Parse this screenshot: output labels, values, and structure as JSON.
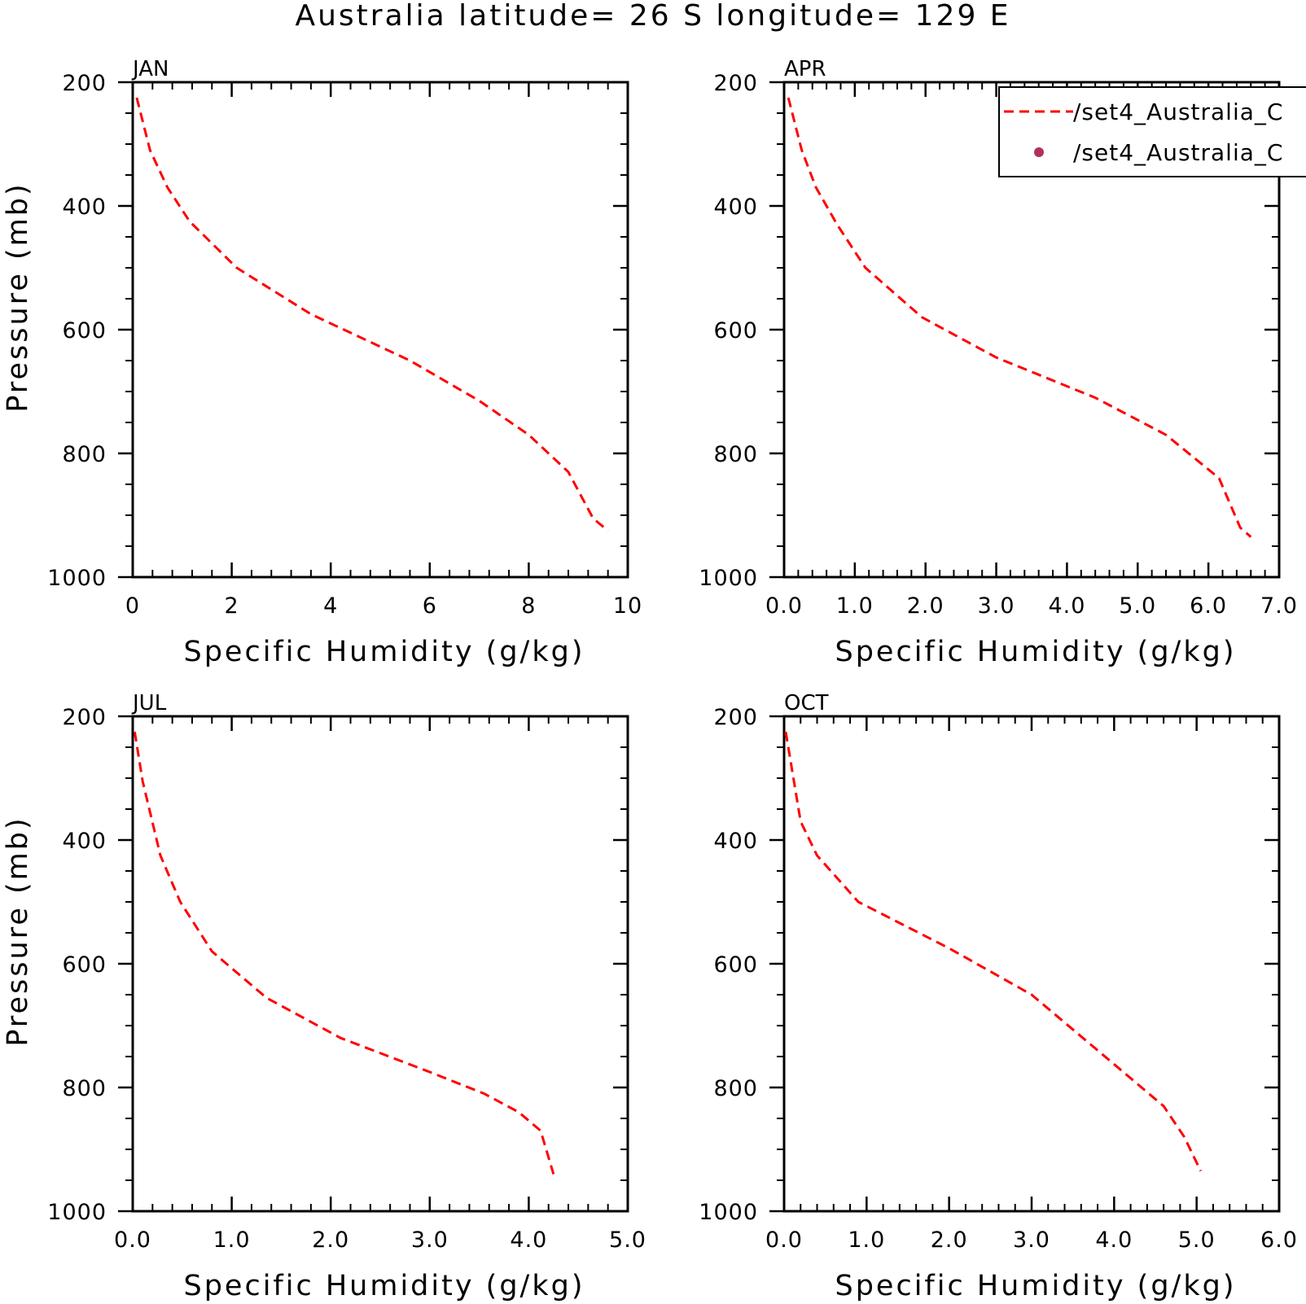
{
  "title": "Australia  latitude= 26 S longitude= 129 E",
  "colors": {
    "model": "#ff0000",
    "obs": "#b03060",
    "axis": "#000000"
  },
  "legend": {
    "placement": "top-right",
    "entries": [
      {
        "label": "/set4_Australia_C",
        "style": "dashed-line",
        "color": "#ff0000"
      },
      {
        "label": "/set4_Australia_C",
        "style": "dot",
        "color": "#b03060"
      }
    ]
  },
  "chart_data": [
    {
      "type": "line",
      "panel": "JAN",
      "xlabel": "Specific Humidity (g/kg)",
      "ylabel": "Pressure (mb)",
      "xlim": [
        0,
        10
      ],
      "ylim": [
        200,
        1000
      ],
      "y_inverted": true,
      "xticks": [
        "0",
        "2",
        "4",
        "6",
        "8",
        "10"
      ],
      "xtick_values": [
        0,
        2,
        4,
        6,
        8,
        10
      ],
      "yticks": [
        "200",
        "400",
        "600",
        "800",
        "1000"
      ],
      "ytick_values": [
        200,
        400,
        600,
        800,
        1000
      ],
      "series": [
        {
          "x": [
            0.08,
            0.35,
            0.7,
            1.15,
            2.1,
            3.6,
            5.6,
            7.0,
            8.0,
            8.8,
            9.3,
            9.6
          ],
          "y": [
            225,
            310,
            370,
            425,
            500,
            575,
            650,
            715,
            770,
            830,
            905,
            925
          ]
        }
      ]
    },
    {
      "type": "line",
      "panel": "APR",
      "xlabel": "Specific Humidity (g/kg)",
      "ylabel": "",
      "xlim": [
        0,
        7
      ],
      "ylim": [
        200,
        1000
      ],
      "y_inverted": true,
      "xticks": [
        "0.0",
        "1.0",
        "2.0",
        "3.0",
        "4.0",
        "5.0",
        "6.0",
        "7.0"
      ],
      "xtick_values": [
        0,
        1,
        2,
        3,
        4,
        5,
        6,
        7
      ],
      "yticks": [
        "200",
        "400",
        "600",
        "800",
        "1000"
      ],
      "ytick_values": [
        200,
        400,
        600,
        800,
        1000
      ],
      "series": [
        {
          "x": [
            0.06,
            0.25,
            0.45,
            0.75,
            1.15,
            1.95,
            3.0,
            4.4,
            5.4,
            6.15,
            6.45,
            6.6
          ],
          "y": [
            225,
            310,
            370,
            430,
            500,
            580,
            645,
            710,
            770,
            840,
            920,
            935
          ]
        }
      ]
    },
    {
      "type": "line",
      "panel": "JUL",
      "xlabel": "Specific Humidity (g/kg)",
      "ylabel": "Pressure (mb)",
      "xlim": [
        0,
        5
      ],
      "ylim": [
        200,
        1000
      ],
      "y_inverted": true,
      "xticks": [
        "0.0",
        "1.0",
        "2.0",
        "3.0",
        "4.0",
        "5.0"
      ],
      "xtick_values": [
        0,
        1,
        2,
        3,
        4,
        5
      ],
      "yticks": [
        "200",
        "400",
        "600",
        "800",
        "1000"
      ],
      "ytick_values": [
        200,
        400,
        600,
        800,
        1000
      ],
      "series": [
        {
          "x": [
            0.02,
            0.1,
            0.28,
            0.48,
            0.8,
            1.35,
            2.1,
            3.0,
            3.55,
            3.9,
            4.12,
            4.25
          ],
          "y": [
            225,
            305,
            425,
            500,
            580,
            655,
            720,
            775,
            810,
            840,
            870,
            940
          ]
        }
      ]
    },
    {
      "type": "line",
      "panel": "OCT",
      "xlabel": "Specific Humidity (g/kg)",
      "ylabel": "",
      "xlim": [
        0,
        6
      ],
      "ylim": [
        200,
        1000
      ],
      "y_inverted": true,
      "xticks": [
        "0.0",
        "1.0",
        "2.0",
        "3.0",
        "4.0",
        "5.0",
        "6.0"
      ],
      "xtick_values": [
        0,
        1,
        2,
        3,
        4,
        5,
        6
      ],
      "yticks": [
        "200",
        "400",
        "600",
        "800",
        "1000"
      ],
      "ytick_values": [
        200,
        400,
        600,
        800,
        1000
      ],
      "series": [
        {
          "x": [
            0.02,
            0.2,
            0.4,
            0.9,
            2.0,
            3.0,
            3.8,
            4.6,
            4.85,
            5.05
          ],
          "y": [
            225,
            370,
            425,
            500,
            575,
            650,
            740,
            830,
            880,
            935
          ]
        }
      ]
    }
  ]
}
